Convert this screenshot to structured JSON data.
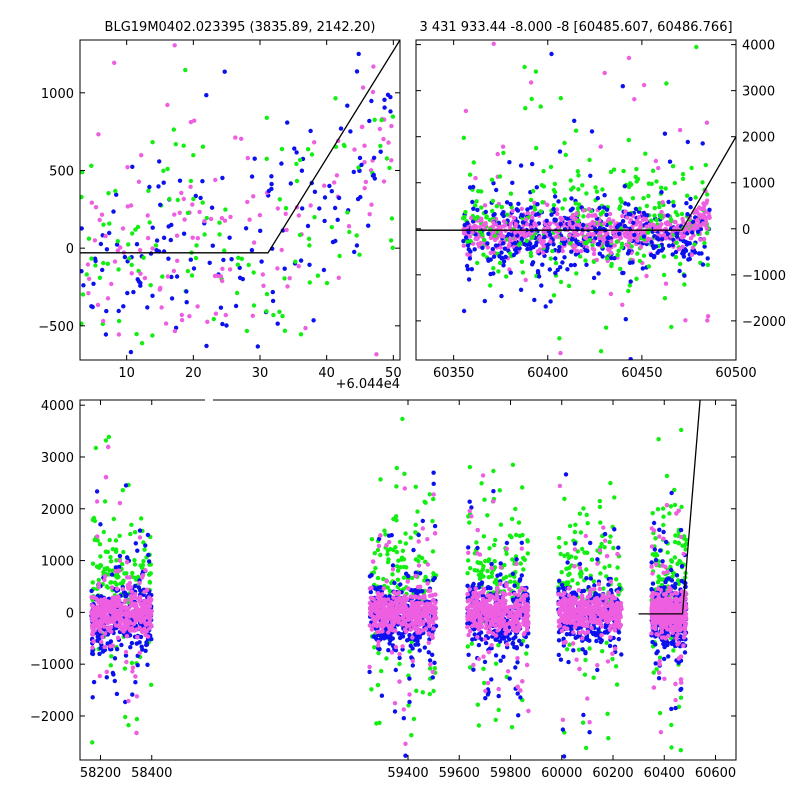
{
  "colors": {
    "blue": "#0a10ee",
    "green": "#12ee12",
    "magenta": "#ee5ee0",
    "model": "#000000"
  },
  "panels": {
    "top_left": {
      "title": "BLG19M0402.023395 (3835.89, 2142.20)",
      "offset_label": "+6.044e4",
      "xlim": [
        3,
        51
      ],
      "ylim": [
        -720,
        1340
      ],
      "xticks": [
        10,
        20,
        30,
        40,
        50
      ],
      "yticks": [
        -500,
        0,
        500,
        1000
      ],
      "scatter_x": [
        3,
        50
      ],
      "scatter_y": [
        -720,
        1340
      ],
      "model": [
        [
          3,
          -30
        ],
        [
          31.2,
          -30
        ],
        [
          51,
          1340
        ]
      ]
    },
    "top_right": {
      "title": "3 431 933.44 -8.000 -8 [60485.607, 60486.766]",
      "xlim": [
        60330,
        60500
      ],
      "ylim": [
        -2850,
        4100
      ],
      "xticks": [
        60350,
        60400,
        60450,
        60500
      ],
      "yticks": [
        -2000,
        -1000,
        0,
        1000,
        2000,
        3000,
        4000
      ],
      "scatter_x": [
        60355,
        60486
      ],
      "scatter_y": [
        -2850,
        4100
      ],
      "model": [
        [
          60330,
          -30
        ],
        [
          60471.2,
          -30
        ],
        [
          60500,
          2000
        ]
      ]
    },
    "bottom": {
      "xlim": [
        58120,
        60680
      ],
      "ylim": [
        -2850,
        4100
      ],
      "xticks": [
        58200,
        58400,
        59400,
        59600,
        59800,
        60000,
        60200,
        60400,
        60600
      ],
      "yticks": [
        -2000,
        -1000,
        0,
        1000,
        2000,
        3000,
        4000
      ],
      "seasons": [
        [
          58165,
          58400
        ],
        [
          59250,
          59510
        ],
        [
          59630,
          59870
        ],
        [
          59985,
          60235
        ],
        [
          60350,
          60486
        ]
      ],
      "model": [
        [
          60300,
          -30
        ],
        [
          60471.2,
          -30
        ],
        [
          60540,
          4100
        ]
      ]
    }
  },
  "chart_data": [
    {
      "type": "scatter",
      "title": "BLG19M0402.023395 (3835.89, 2142.20)",
      "xlabel": "",
      "ylabel": "",
      "x_offset": "+6.044e4",
      "xlim": [
        3,
        51
      ],
      "ylim": [
        -720,
        1340
      ],
      "series": [
        {
          "name": "",
          "color": "#0a10ee"
        },
        {
          "name": "",
          "color": "#12ee12"
        },
        {
          "name": "",
          "color": "#ee5ee0"
        }
      ],
      "model_curve": {
        "baseline": -30,
        "break_x": 31.2,
        "end": [
          51,
          1340
        ]
      }
    },
    {
      "type": "scatter",
      "title": "3 431 933.44 -8.000 -8 [60485.607, 60486.766]",
      "xlabel": "",
      "ylabel": "",
      "xlim": [
        60330,
        60500
      ],
      "ylim": [
        -2850,
        4100
      ],
      "model_curve": {
        "baseline": -30,
        "break_x": 60471.2,
        "end": [
          60500,
          2000
        ]
      }
    },
    {
      "type": "scatter",
      "title": "",
      "xlabel": "",
      "ylabel": "",
      "xlim": [
        58120,
        60680
      ],
      "ylim": [
        -2850,
        4100
      ],
      "model_curve": {
        "baseline": -30,
        "break_x": 60471.2,
        "end": [
          60540,
          4100
        ]
      }
    }
  ]
}
